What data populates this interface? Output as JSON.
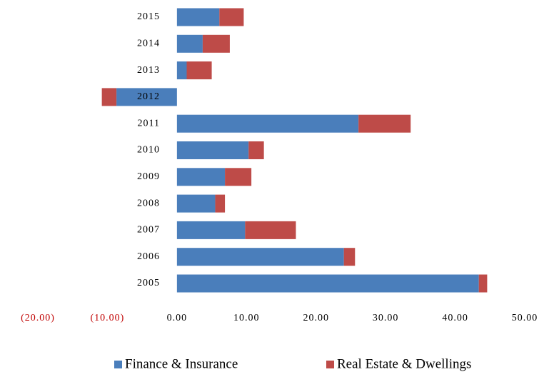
{
  "chart_data": {
    "type": "stacked-barh",
    "categories": [
      "2005",
      "2006",
      "2007",
      "2008",
      "2009",
      "2010",
      "2011",
      "2012",
      "2013",
      "2014",
      "2015"
    ],
    "series": [
      {
        "name": "Finance & Insurance",
        "color": "#4a7ebb",
        "values": [
          43.4,
          24.0,
          9.8,
          5.5,
          6.9,
          10.3,
          26.1,
          -8.7,
          1.4,
          3.7,
          6.1
        ]
      },
      {
        "name": "Real Estate & Dwellings",
        "color": "#be4b48",
        "values": [
          1.2,
          1.6,
          7.3,
          1.4,
          3.8,
          2.2,
          7.5,
          -2.1,
          3.6,
          3.9,
          3.5
        ]
      }
    ],
    "xlim": [
      -20,
      50
    ],
    "xticks": [
      {
        "value": -20,
        "label": "(20.00)"
      },
      {
        "value": -10,
        "label": "(10.00)"
      },
      {
        "value": 0,
        "label": "0.00"
      },
      {
        "value": 10,
        "label": "10.00"
      },
      {
        "value": 20,
        "label": "20.00"
      },
      {
        "value": 30,
        "label": "30.00"
      },
      {
        "value": 40,
        "label": "40.00"
      },
      {
        "value": 50,
        "label": "50.00"
      }
    ],
    "negative_tick_color": "#c00000",
    "legend": "bottom"
  }
}
